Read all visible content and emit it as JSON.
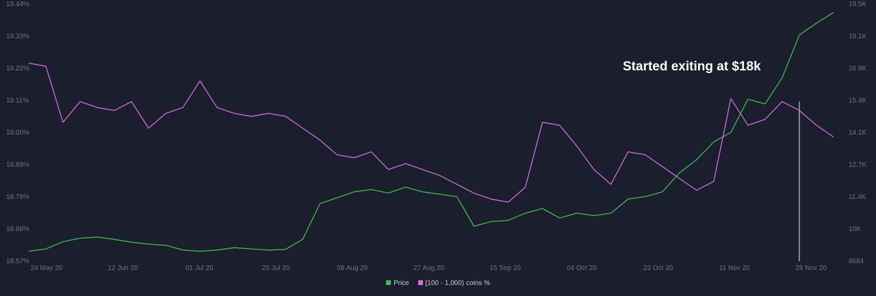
{
  "chart_data": {
    "type": "line",
    "title": "",
    "xlabel": "",
    "ylabel": "",
    "x_ticks": [
      "24 May 20",
      "12 Jun 20",
      "01 Jul 20",
      "20 Jul 20",
      "08 Aug 20",
      "27 Aug 20",
      "15 Sep 20",
      "04 Oct 20",
      "23 Oct 20",
      "11 Nov 20",
      "28 Nov 20"
    ],
    "x": [
      "2020-05-22",
      "2020-05-26",
      "2020-05-30",
      "2020-06-03",
      "2020-06-07",
      "2020-06-11",
      "2020-06-15",
      "2020-06-19",
      "2020-06-23",
      "2020-06-27",
      "2020-07-01",
      "2020-07-05",
      "2020-07-09",
      "2020-07-13",
      "2020-07-17",
      "2020-07-21",
      "2020-07-25",
      "2020-07-29",
      "2020-08-02",
      "2020-08-06",
      "2020-08-10",
      "2020-08-14",
      "2020-08-18",
      "2020-08-22",
      "2020-08-26",
      "2020-08-30",
      "2020-09-03",
      "2020-09-07",
      "2020-09-11",
      "2020-09-15",
      "2020-09-19",
      "2020-09-23",
      "2020-09-27",
      "2020-10-01",
      "2020-10-05",
      "2020-10-09",
      "2020-10-13",
      "2020-10-17",
      "2020-10-21",
      "2020-10-25",
      "2020-10-29",
      "2020-11-02",
      "2020-11-06",
      "2020-11-10",
      "2020-11-14",
      "2020-11-18",
      "2020-11-22",
      "2020-11-26"
    ],
    "y_left_ticks": [
      "19.44%",
      "19.33%",
      "19.22%",
      "19.11%",
      "19.00%",
      "18.89%",
      "18.79%",
      "18.68%",
      "18.57%"
    ],
    "y_left_range": [
      18.57,
      19.44
    ],
    "y_right_ticks": [
      "19.5K",
      "18.1K",
      "16.8K",
      "15.4K",
      "14.1K",
      "12.7K",
      "11.4K",
      "10K",
      "8684"
    ],
    "y_right_range": [
      8684,
      19500
    ],
    "series": [
      {
        "name": "Price",
        "axis": "right",
        "color": "#3fbf4a",
        "values": [
          9100,
          9200,
          9500,
          9650,
          9700,
          9600,
          9480,
          9400,
          9350,
          9150,
          9100,
          9150,
          9250,
          9200,
          9150,
          9180,
          9600,
          11100,
          11350,
          11600,
          11700,
          11550,
          11800,
          11600,
          11500,
          11400,
          10150,
          10350,
          10400,
          10700,
          10900,
          10500,
          10700,
          10600,
          10700,
          11300,
          11400,
          11600,
          12400,
          12950,
          13700,
          14100,
          15500,
          15300,
          16400,
          18200,
          18700,
          19150
        ]
      },
      {
        "name": "[100 - 1,000) coins %",
        "axis": "left",
        "color": "#d36de0",
        "values": [
          19.24,
          19.23,
          19.04,
          19.11,
          19.09,
          19.08,
          19.11,
          19.02,
          19.07,
          19.09,
          19.18,
          19.09,
          19.07,
          19.06,
          19.07,
          19.06,
          19.02,
          18.98,
          18.93,
          18.92,
          18.94,
          18.88,
          18.9,
          18.88,
          18.86,
          18.83,
          18.8,
          18.78,
          18.77,
          18.82,
          19.04,
          19.03,
          18.96,
          18.88,
          18.83,
          18.94,
          18.93,
          18.89,
          18.85,
          18.81,
          18.84,
          19.12,
          19.03,
          19.05,
          19.11,
          19.08,
          19.03,
          18.99
        ]
      }
    ],
    "annotation": {
      "text": "Started exiting at $18k",
      "x": "2020-11-18",
      "y_pct": 19.11
    },
    "grid": false,
    "legend": "bottom-center"
  }
}
